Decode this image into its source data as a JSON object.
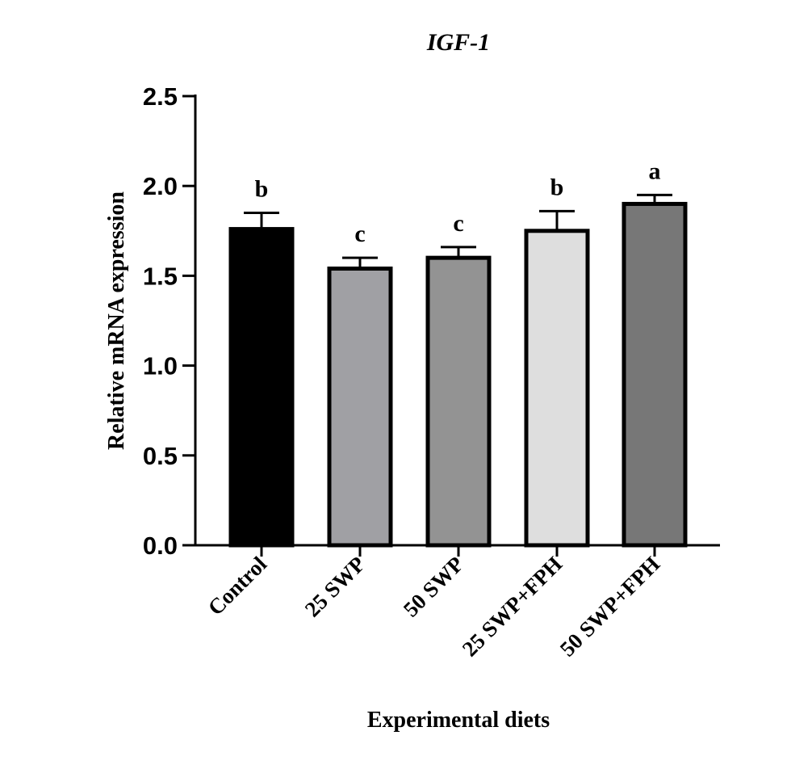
{
  "chart_data": {
    "type": "bar",
    "title": "IGF-1",
    "xlabel": "Experimental diets",
    "ylabel": "Relative mRNA expression",
    "ylim": [
      0,
      2.5
    ],
    "yticks": [
      "0.0",
      "0.5",
      "1.0",
      "1.5",
      "2.0",
      "2.5"
    ],
    "categories": [
      "Control",
      "25 SWP",
      "50 SWP",
      "25 SWP+FPH",
      "50 SWP+FPH"
    ],
    "values": [
      1.76,
      1.54,
      1.6,
      1.75,
      1.9
    ],
    "errors": [
      0.09,
      0.06,
      0.06,
      0.11,
      0.05
    ],
    "significance": [
      "b",
      "c",
      "c",
      "b",
      "a"
    ],
    "colors": [
      "#000000",
      "#a0a0a4",
      "#939393",
      "#dedede",
      "#777777"
    ],
    "grid": false
  }
}
